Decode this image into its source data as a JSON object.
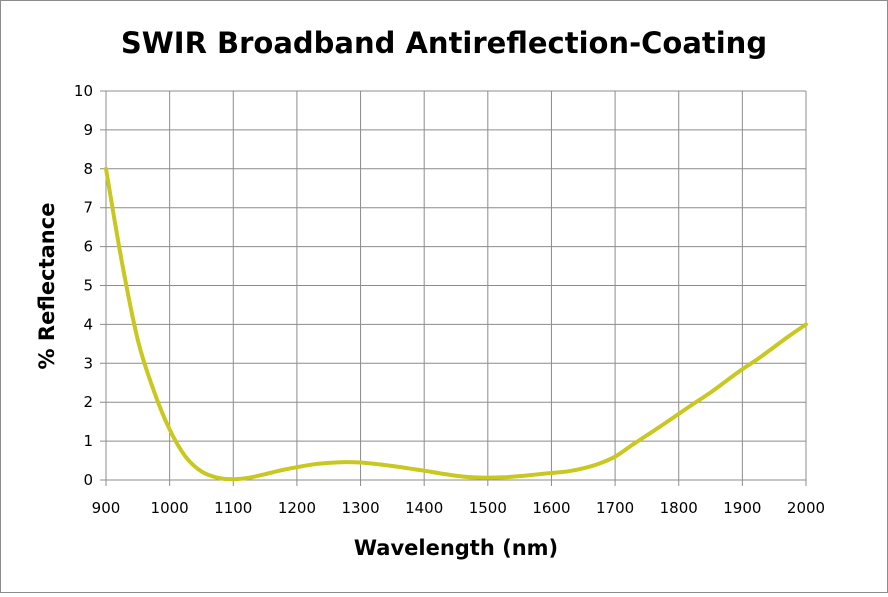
{
  "chart_data": {
    "type": "line",
    "title": "SWIR Broadband Antireflection-Coating",
    "xlabel": "Wavelength (nm)",
    "ylabel": "% Reflectance",
    "xlim": [
      900,
      2000
    ],
    "ylim": [
      0,
      10
    ],
    "x_ticks": [
      900,
      1000,
      1100,
      1200,
      1300,
      1400,
      1500,
      1600,
      1700,
      1800,
      1900,
      2000
    ],
    "y_ticks": [
      0,
      1,
      2,
      3,
      4,
      5,
      6,
      7,
      8,
      9,
      10
    ],
    "grid": true,
    "legend": "none",
    "line_color": "#c8c820",
    "series": [
      {
        "x": [
          900,
          925,
          950,
          975,
          1000,
          1025,
          1050,
          1075,
          1100,
          1125,
          1150,
          1175,
          1200,
          1225,
          1250,
          1275,
          1300,
          1325,
          1350,
          1375,
          1400,
          1425,
          1450,
          1475,
          1500,
          1525,
          1550,
          1575,
          1600,
          1625,
          1650,
          1675,
          1700,
          1725,
          1750,
          1775,
          1800,
          1825,
          1850,
          1875,
          1900,
          1925,
          1950,
          1975,
          2000
        ],
        "y": [
          8.0,
          5.6,
          3.6,
          2.3,
          1.3,
          0.6,
          0.22,
          0.06,
          0.02,
          0.06,
          0.15,
          0.25,
          0.33,
          0.4,
          0.44,
          0.46,
          0.45,
          0.41,
          0.36,
          0.3,
          0.24,
          0.17,
          0.11,
          0.07,
          0.06,
          0.07,
          0.1,
          0.14,
          0.18,
          0.22,
          0.3,
          0.42,
          0.6,
          0.88,
          1.15,
          1.42,
          1.7,
          1.98,
          2.25,
          2.55,
          2.85,
          3.12,
          3.42,
          3.72,
          4.0
        ]
      }
    ]
  }
}
